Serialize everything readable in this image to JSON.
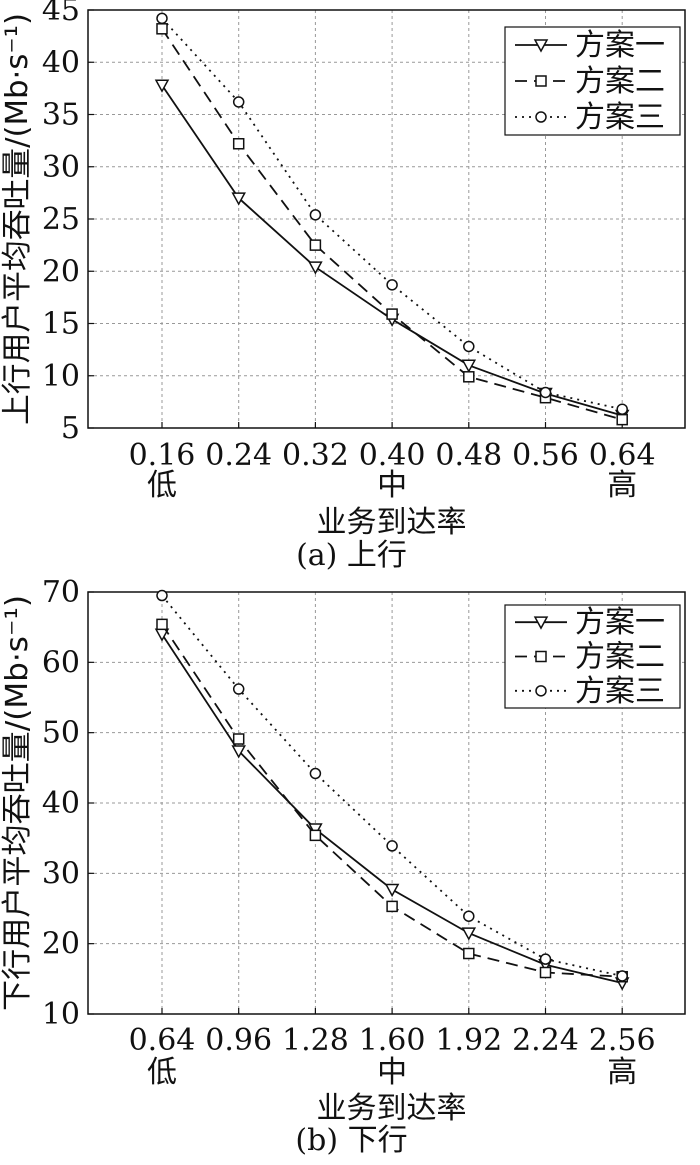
{
  "chart_data": [
    {
      "type": "line",
      "x": [
        "0.16",
        "0.24",
        "0.32",
        "0.40",
        "0.48",
        "0.56",
        "0.64"
      ],
      "x_levels": [
        "低",
        "",
        "",
        "中",
        "",
        "",
        "高"
      ],
      "xlabel": "业务到达率",
      "ylabel": "上行用户平均吞吐量/(Mb·s⁻¹)",
      "caption": "(a) 上行",
      "ylim": [
        5,
        45
      ],
      "yticks": [
        5,
        10,
        15,
        20,
        25,
        30,
        35,
        40,
        45
      ],
      "grid": true,
      "legend_position": "top-right",
      "series": [
        {
          "name": "方案一",
          "marker": "triangle-down",
          "dash": "solid",
          "values": [
            37.8,
            27.0,
            20.4,
            15.4,
            11.0,
            8.3,
            6.2
          ]
        },
        {
          "name": "方案二",
          "marker": "square",
          "dash": "dashed",
          "values": [
            43.2,
            32.2,
            22.5,
            15.9,
            9.9,
            7.9,
            5.8
          ]
        },
        {
          "name": "方案三",
          "marker": "circle",
          "dash": "dotted",
          "values": [
            44.2,
            36.2,
            25.4,
            18.7,
            12.8,
            8.4,
            6.8
          ]
        }
      ]
    },
    {
      "type": "line",
      "x": [
        "0.64",
        "0.96",
        "1.28",
        "1.60",
        "1.92",
        "2.24",
        "2.56"
      ],
      "x_levels": [
        "低",
        "",
        "",
        "中",
        "",
        "",
        "高"
      ],
      "xlabel": "业务到达率",
      "ylabel": "下行用户平均吞吐量/(Mb·s⁻¹)",
      "caption": "(b) 下行",
      "ylim": [
        10,
        70
      ],
      "yticks": [
        10,
        20,
        30,
        40,
        50,
        60,
        70
      ],
      "grid": true,
      "legend_position": "top-right",
      "series": [
        {
          "name": "方案一",
          "marker": "triangle-down",
          "dash": "solid",
          "values": [
            64.0,
            47.4,
            36.3,
            27.7,
            21.5,
            17.0,
            14.4
          ]
        },
        {
          "name": "方案二",
          "marker": "square",
          "dash": "dashed",
          "values": [
            65.4,
            49.1,
            35.4,
            25.3,
            18.6,
            15.9,
            15.3
          ]
        },
        {
          "name": "方案三",
          "marker": "circle",
          "dash": "dotted",
          "values": [
            69.5,
            56.2,
            44.2,
            33.9,
            23.9,
            17.8,
            15.4
          ]
        }
      ]
    }
  ]
}
